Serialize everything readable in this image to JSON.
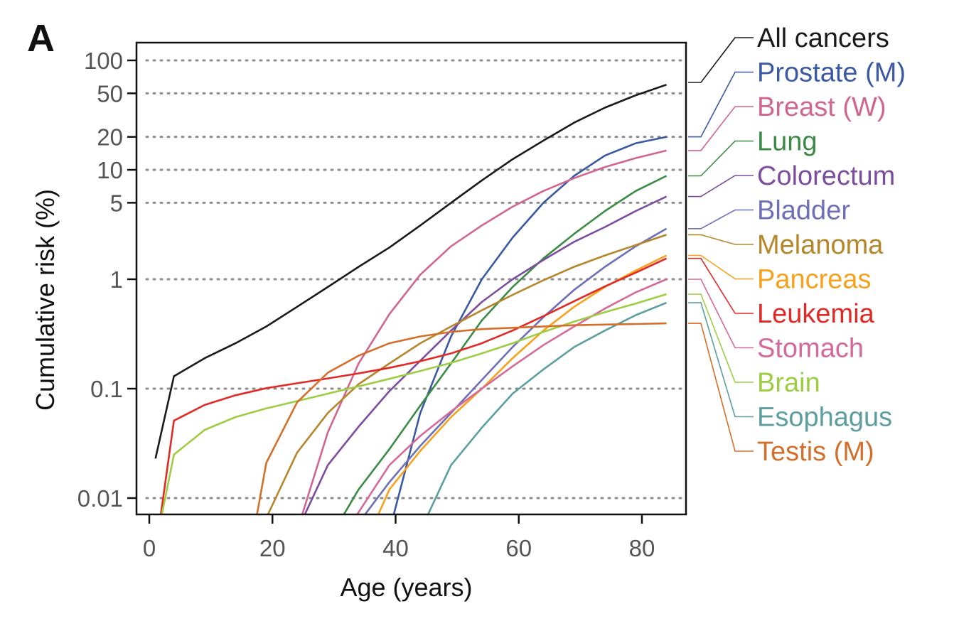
{
  "panel_label": "A",
  "chart_data": {
    "type": "line",
    "title": "",
    "xlabel": "Age (years)",
    "ylabel": "Cumulative risk (%)",
    "y_scale": "log",
    "xlim": [
      -2,
      87
    ],
    "ylim": [
      0.0065,
      130
    ],
    "x_ticks": [
      0,
      20,
      40,
      60,
      80
    ],
    "x_tick_labels": [
      "0",
      "20",
      "40",
      "60",
      "80"
    ],
    "y_ticks": [
      0.01,
      0.1,
      1,
      5,
      10,
      20,
      50,
      100
    ],
    "y_tick_labels": [
      "0.01",
      "0.1",
      "1",
      "5",
      "10",
      "20",
      "50",
      "100"
    ],
    "y_gridlines_dotted": true,
    "legend_placement": "right, labels aligned to line ends",
    "series": [
      {
        "name": "All cancers",
        "color": "#1a1a1a",
        "x": [
          1,
          4,
          9,
          14,
          19,
          24,
          29,
          34,
          39,
          44,
          49,
          54,
          59,
          64,
          69,
          74,
          79,
          84
        ],
        "y": [
          0.023,
          0.13,
          0.19,
          0.26,
          0.37,
          0.56,
          0.85,
          1.3,
          1.95,
          3.1,
          5.0,
          8.0,
          12.5,
          18.5,
          27,
          37,
          48,
          60
        ]
      },
      {
        "name": "Prostate (M)",
        "color": "#3a58a4",
        "x": [
          39,
          44,
          49,
          54,
          59,
          64,
          69,
          74,
          79,
          84
        ],
        "y": [
          0.005,
          0.06,
          0.3,
          1.0,
          2.4,
          5.0,
          8.8,
          13.5,
          17.5,
          20
        ]
      },
      {
        "name": "Breast (W)",
        "color": "#d0668f",
        "x": [
          24,
          29,
          34,
          39,
          44,
          49,
          54,
          59,
          64,
          69,
          74,
          79,
          84
        ],
        "y": [
          0.005,
          0.04,
          0.17,
          0.48,
          1.1,
          2.0,
          3.1,
          4.6,
          6.4,
          8.4,
          10.6,
          12.8,
          15
        ]
      },
      {
        "name": "Lung",
        "color": "#3b8b44",
        "x": [
          30,
          34,
          39,
          44,
          49,
          54,
          59,
          64,
          69,
          74,
          79,
          84
        ],
        "y": [
          0.005,
          0.012,
          0.028,
          0.07,
          0.17,
          0.42,
          0.85,
          1.55,
          2.6,
          4.2,
          6.4,
          8.8
        ]
      },
      {
        "name": "Colorectum",
        "color": "#7c4d9e",
        "x": [
          24,
          29,
          34,
          39,
          44,
          49,
          54,
          59,
          64,
          69,
          74,
          79,
          84
        ],
        "y": [
          0.005,
          0.02,
          0.045,
          0.095,
          0.18,
          0.34,
          0.62,
          1.0,
          1.5,
          2.2,
          3.0,
          4.2,
          5.7
        ]
      },
      {
        "name": "Bladder",
        "color": "#6e6fb8",
        "x": [
          33,
          39,
          44,
          49,
          54,
          59,
          64,
          69,
          74,
          79,
          84
        ],
        "y": [
          0.005,
          0.014,
          0.03,
          0.06,
          0.12,
          0.24,
          0.45,
          0.8,
          1.3,
          2.0,
          2.9
        ]
      },
      {
        "name": "Melanoma",
        "color": "#b5862a",
        "x": [
          18,
          24,
          29,
          34,
          39,
          44,
          49,
          54,
          59,
          64,
          69,
          74,
          79,
          84
        ],
        "y": [
          0.005,
          0.026,
          0.06,
          0.11,
          0.17,
          0.26,
          0.37,
          0.52,
          0.72,
          0.98,
          1.3,
          1.65,
          2.05,
          2.55
        ]
      },
      {
        "name": "Pancreas",
        "color": "#f6a21e",
        "x": [
          36,
          39,
          44,
          49,
          54,
          59,
          64,
          69,
          74,
          79,
          84
        ],
        "y": [
          0.005,
          0.012,
          0.027,
          0.055,
          0.1,
          0.19,
          0.34,
          0.56,
          0.85,
          1.2,
          1.65
        ]
      },
      {
        "name": "Leukemia",
        "color": "#e12a26",
        "x": [
          1.5,
          4,
          9,
          14,
          19,
          24,
          29,
          34,
          39,
          44,
          49,
          54,
          59,
          64,
          69,
          74,
          79,
          84
        ],
        "y": [
          0.005,
          0.051,
          0.071,
          0.087,
          0.101,
          0.112,
          0.124,
          0.138,
          0.155,
          0.178,
          0.21,
          0.26,
          0.34,
          0.46,
          0.63,
          0.86,
          1.15,
          1.55
        ]
      },
      {
        "name": "Stomach",
        "color": "#d4699a",
        "x": [
          32,
          39,
          44,
          49,
          54,
          59,
          64,
          69,
          74,
          79,
          84
        ],
        "y": [
          0.005,
          0.02,
          0.037,
          0.062,
          0.1,
          0.16,
          0.25,
          0.37,
          0.54,
          0.76,
          1.0
        ]
      },
      {
        "name": "Brain",
        "color": "#9dcd43",
        "x": [
          1.5,
          4,
          9,
          14,
          19,
          24,
          29,
          34,
          39,
          44,
          49,
          54,
          59,
          64,
          69,
          74,
          79,
          84
        ],
        "y": [
          0.005,
          0.025,
          0.042,
          0.055,
          0.066,
          0.077,
          0.09,
          0.105,
          0.123,
          0.145,
          0.172,
          0.21,
          0.26,
          0.33,
          0.41,
          0.5,
          0.6,
          0.73
        ]
      },
      {
        "name": "Esophagus",
        "color": "#5d9e9e",
        "x": [
          44,
          49,
          54,
          59,
          64,
          69,
          74,
          79,
          84
        ],
        "y": [
          0.005,
          0.02,
          0.044,
          0.09,
          0.15,
          0.24,
          0.34,
          0.47,
          0.61
        ]
      },
      {
        "name": "Testis (M)",
        "color": "#d36f2a",
        "x": [
          17,
          19,
          24,
          29,
          34,
          39,
          44,
          49,
          54,
          59,
          64,
          69,
          74,
          79,
          84
        ],
        "y": [
          0.005,
          0.021,
          0.075,
          0.14,
          0.2,
          0.26,
          0.3,
          0.33,
          0.35,
          0.36,
          0.37,
          0.38,
          0.385,
          0.39,
          0.395
        ]
      }
    ]
  }
}
